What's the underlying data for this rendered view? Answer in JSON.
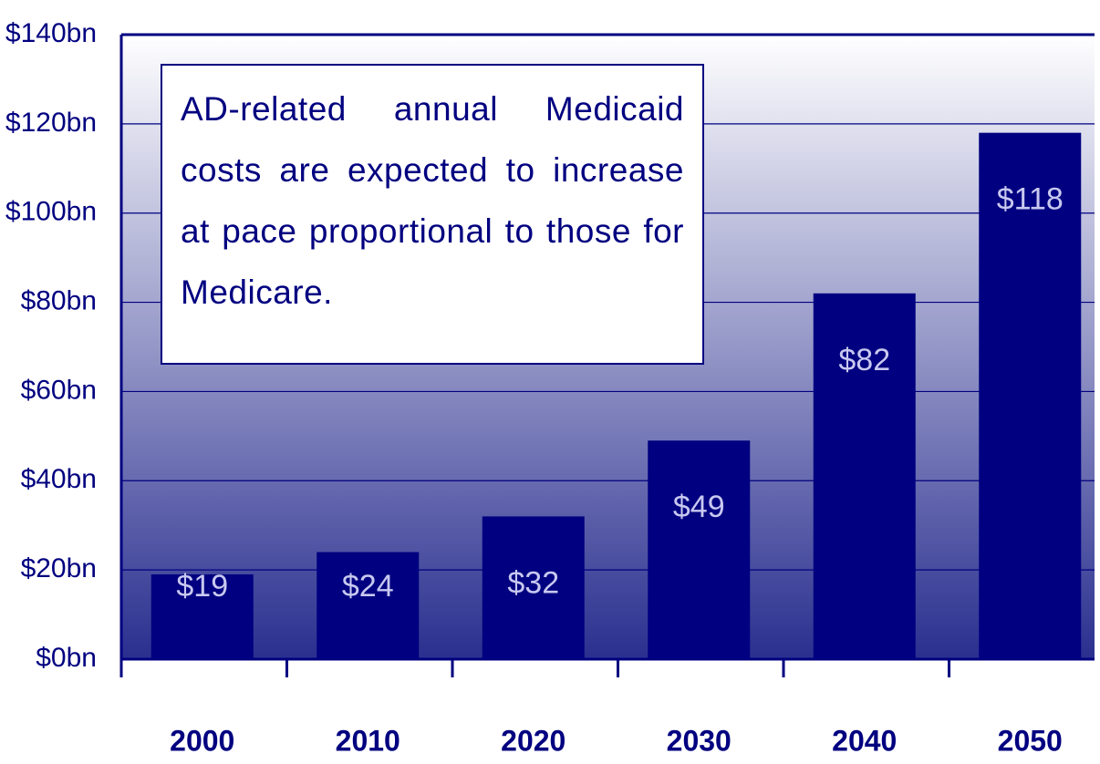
{
  "chart_data": {
    "type": "bar",
    "annotation": "AD-related annual Medicaid costs are expected to increase at pace proportional to those for Medicare.",
    "categories": [
      "2000",
      "2010",
      "2020",
      "2030",
      "2040",
      "2050"
    ],
    "values": [
      19,
      24,
      32,
      49,
      82,
      118
    ],
    "value_labels": [
      "$19",
      "$24",
      "$32",
      "$49",
      "$82",
      "$118"
    ],
    "color": "#000080",
    "ylim": [
      0,
      140
    ],
    "yticks": [
      {
        "value": 0,
        "label": "$0bn"
      },
      {
        "value": 20,
        "label": "$20bn"
      },
      {
        "value": 40,
        "label": "$40bn"
      },
      {
        "value": 60,
        "label": "$60bn"
      },
      {
        "value": 80,
        "label": "$80bn"
      },
      {
        "value": 100,
        "label": "$100bn"
      },
      {
        "value": 120,
        "label": "$120bn"
      },
      {
        "value": 140,
        "label": "$140bn"
      }
    ],
    "grid": true
  }
}
